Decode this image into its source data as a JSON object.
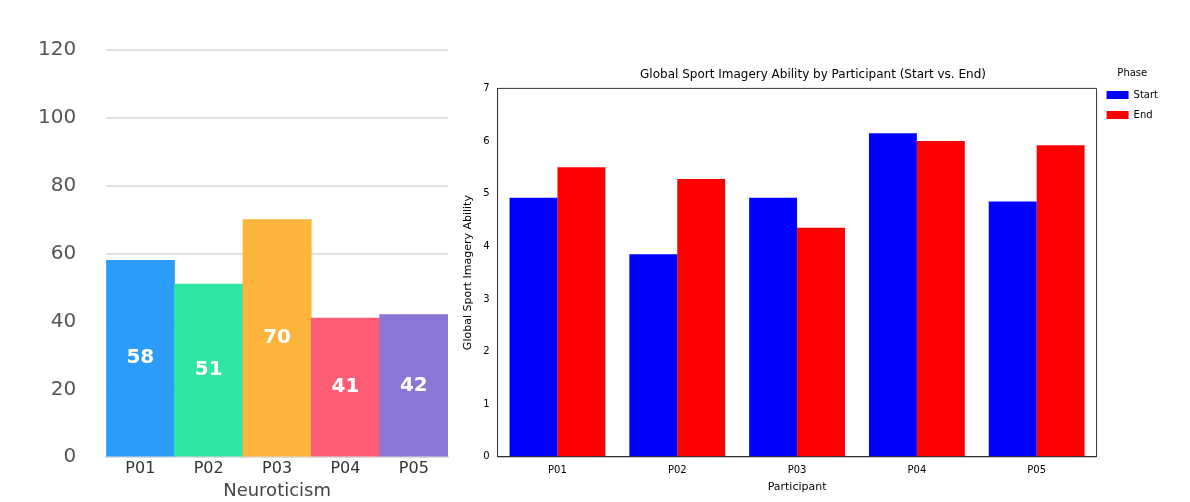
{
  "chart_data": [
    {
      "type": "bar",
      "categories": [
        "P01",
        "P02",
        "P03",
        "P04",
        "P05"
      ],
      "values": [
        58,
        51,
        70,
        41,
        42
      ],
      "colors": [
        "#2b9cf7",
        "#2ee6a3",
        "#fcb43a",
        "#ff5c75",
        "#8b76d6"
      ],
      "xlabel": "Neuroticism",
      "ylim": [
        0,
        120
      ],
      "yticks": [
        0,
        20,
        40,
        60,
        80,
        100,
        120
      ],
      "grid": "y",
      "data_labels": true,
      "legend": false
    },
    {
      "type": "bar",
      "title": "Global Sport Imagery Ability by Participant (Start vs. End)",
      "categories": [
        "P01",
        "P02",
        "P03",
        "P04",
        "P05"
      ],
      "series": [
        {
          "name": "Start",
          "color": "#0000ff",
          "values": [
            4.92,
            3.85,
            4.92,
            6.15,
            4.85
          ]
        },
        {
          "name": "End",
          "color": "#ff0000",
          "values": [
            5.5,
            5.28,
            4.35,
            6.0,
            5.92
          ]
        }
      ],
      "xlabel": "Participant",
      "ylabel": "Global Sport Imagery Ability",
      "ylim": [
        0,
        7
      ],
      "yticks": [
        0,
        1,
        2,
        3,
        4,
        5,
        6,
        7
      ],
      "grid": false,
      "legend": "top right",
      "legend_title": "Phase"
    }
  ]
}
